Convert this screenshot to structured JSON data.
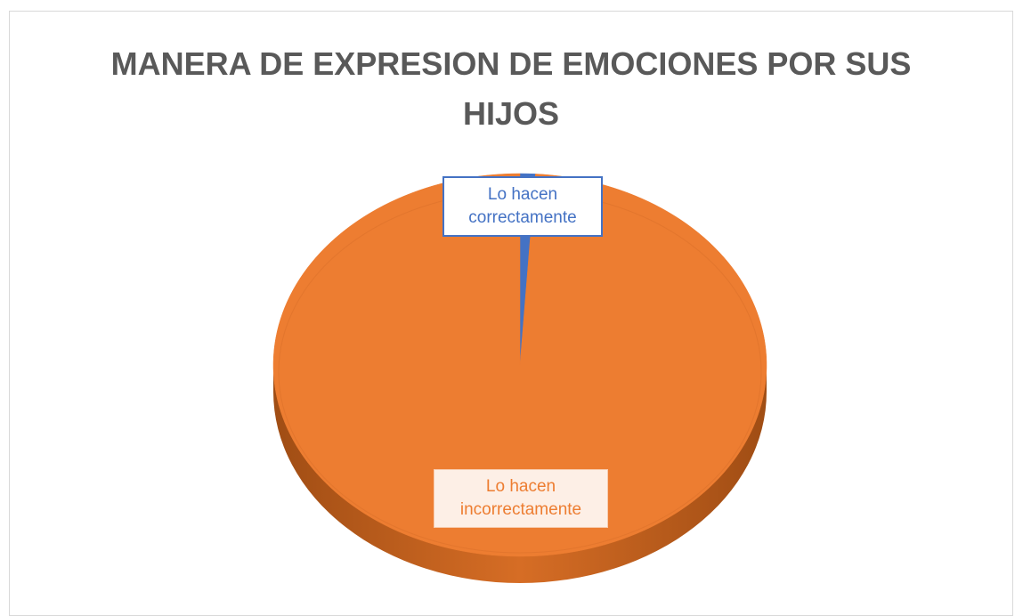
{
  "chart_data": {
    "type": "pie",
    "title": "MANERA DE EXPRESION DE EMOCIONES POR SUS HIJOS",
    "categories": [
      "Lo hacen correctamente",
      "Lo hacen incorrectamente"
    ],
    "values": [
      1,
      99
    ],
    "colors": [
      "#4472c4",
      "#ed7d31"
    ]
  }
}
